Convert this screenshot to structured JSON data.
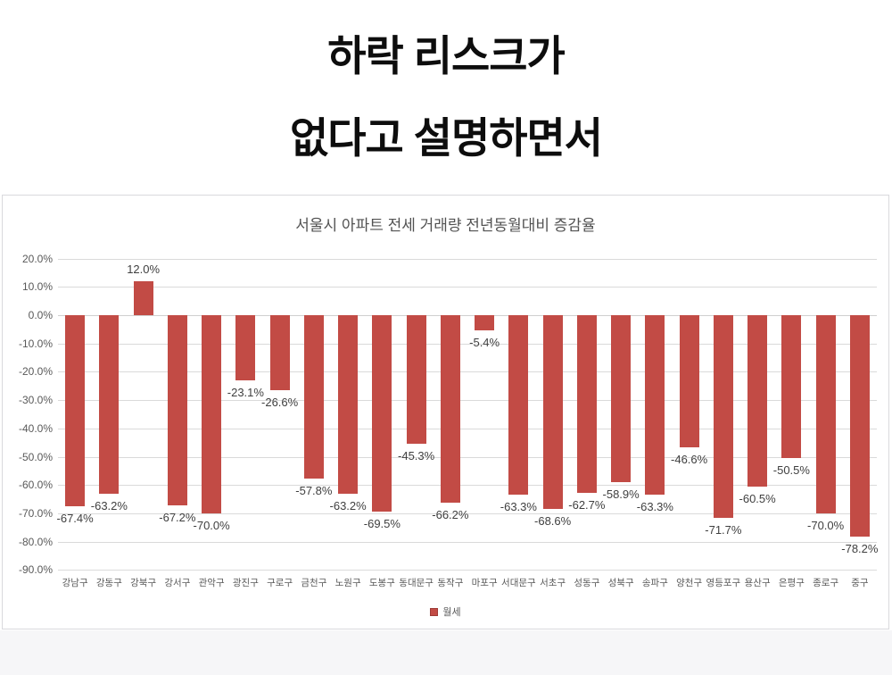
{
  "header": {
    "title_line1": "하락 리스크가",
    "title_line2": "없다고 설명하면서"
  },
  "chart_data": {
    "type": "bar",
    "title": "서울시 아파트 전세 거래량 전년동월대비 증감율",
    "series_name": "월세",
    "categories": [
      "강남구",
      "강동구",
      "강북구",
      "강서구",
      "관악구",
      "광진구",
      "구로구",
      "금천구",
      "노원구",
      "도봉구",
      "동대문구",
      "동작구",
      "마포구",
      "서대문구",
      "서초구",
      "성동구",
      "성북구",
      "송파구",
      "양천구",
      "영등포구",
      "용산구",
      "은평구",
      "종로구",
      "중구"
    ],
    "values": [
      -67.4,
      -63.2,
      12.0,
      -67.2,
      -70.0,
      -23.1,
      -26.6,
      -57.8,
      -63.2,
      -69.5,
      -45.3,
      -66.2,
      -5.4,
      -63.3,
      -68.6,
      -62.7,
      -58.9,
      -63.3,
      -46.6,
      -71.7,
      -60.5,
      -50.5,
      -70.0,
      -78.2
    ],
    "data_labels": [
      "-67.4%",
      "-63.2%",
      "12.0%",
      "-67.2%",
      "-70.0%",
      "-23.1%",
      "-26.6%",
      "-57.8%",
      "-63.2%",
      "-69.5%",
      "-45.3%",
      "-66.2%",
      "-5.4%",
      "-63.3%",
      "-68.6%",
      "-62.7%",
      "-58.9%",
      "-63.3%",
      "-46.6%",
      "-71.7%",
      "-60.5%",
      "-50.5%",
      "-70.0%",
      "-78.2%"
    ],
    "ylim": [
      -90,
      20
    ],
    "ytick_step": 10,
    "yticks": [
      "20.0%",
      "10.0%",
      "0.0%",
      "-10.0%",
      "-20.0%",
      "-30.0%",
      "-40.0%",
      "-50.0%",
      "-60.0%",
      "-70.0%",
      "-80.0%",
      "-90.0%"
    ],
    "grid": true,
    "legend_position": "bottom",
    "bar_color": "#c24b45",
    "xlabel": "",
    "ylabel": ""
  }
}
